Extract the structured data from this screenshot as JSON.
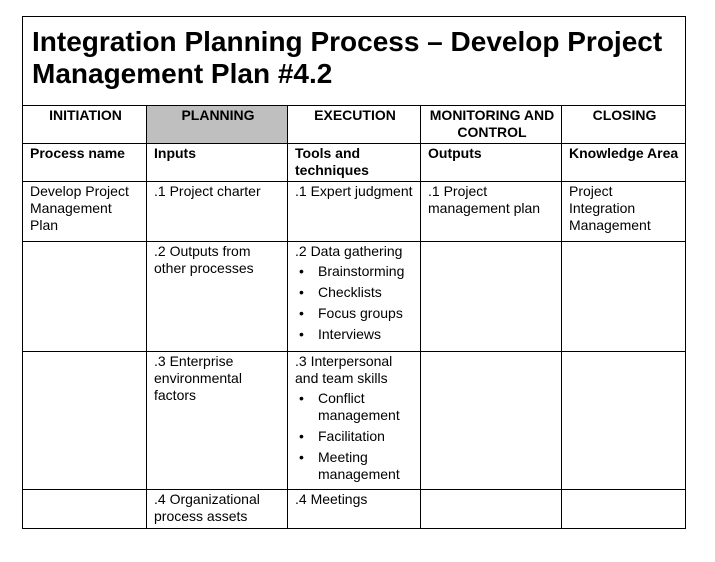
{
  "title": "Integration Planning Process – Develop Project Management Plan #4.2",
  "phases": [
    "INITIATION",
    "PLANNING",
    "EXECUTION",
    "MONITORING AND CONTROL",
    "CLOSING"
  ],
  "columns": [
    "Process name",
    "Inputs",
    "Tools and techniques",
    "Outputs",
    "Knowledge Area"
  ],
  "rows": [
    {
      "process": "Develop Project Management Plan",
      "input": ".1 Project charter",
      "tool": ".1 Expert judgment",
      "bullets": [],
      "output": ".1 Project management plan",
      "area": "Project Integration Management"
    },
    {
      "process": "",
      "input": ".2 Outputs from other processes",
      "tool": ".2 Data gathering",
      "bullets": [
        "Brainstorming",
        "Checklists",
        "Focus groups",
        "Interviews"
      ],
      "output": "",
      "area": ""
    },
    {
      "process": "",
      "input": ".3 Enterprise environmental factors",
      "tool": ".3 Interpersonal and team skills",
      "bullets": [
        "Conflict management",
        "Facilitation",
        "Meeting management"
      ],
      "output": "",
      "area": ""
    },
    {
      "process": "",
      "input": ".4 Organizational process assets",
      "tool": ".4 Meetings",
      "bullets": [],
      "output": "",
      "area": ""
    }
  ]
}
